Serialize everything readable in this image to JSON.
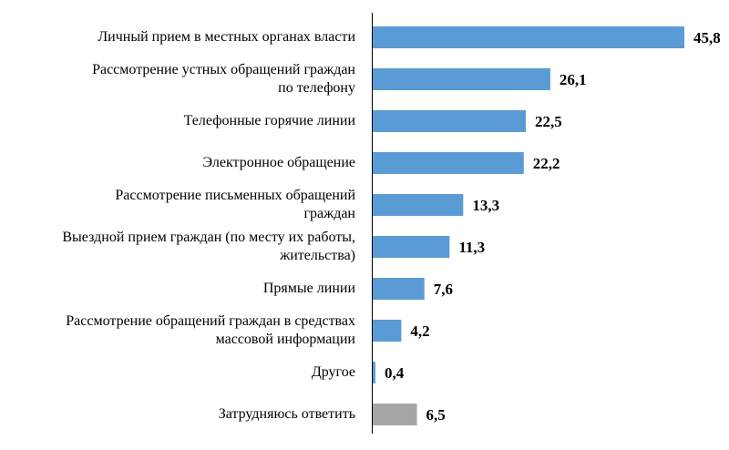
{
  "chart_data": {
    "type": "bar",
    "orientation": "horizontal",
    "categories": [
      "Личный прием в местных органах власти",
      "Рассмотрение устных  обращений граждан\nпо телефону",
      "Телефонные  горячие линии",
      "Электронное обращение",
      "Рассмотрение письменных  обращений\nграждан",
      "Выездной прием граждан (по месту их работы,\nжительства)",
      "Прямые линии",
      "Рассмотрение обращений граждан в средствах\nмассовой информации",
      "Другое",
      "Затрудняюсь ответить"
    ],
    "values": [
      45.8,
      26.1,
      22.5,
      22.2,
      13.3,
      11.3,
      7.6,
      4.2,
      0.4,
      6.5
    ],
    "value_labels": [
      "45,8",
      "26,1",
      "22,5",
      "22,2",
      "13,3",
      "11,3",
      "7,6",
      "4,2",
      "0,4",
      "6,5"
    ],
    "colors": [
      "#5b9bd5",
      "#5b9bd5",
      "#5b9bd5",
      "#5b9bd5",
      "#5b9bd5",
      "#5b9bd5",
      "#5b9bd5",
      "#5b9bd5",
      "#5b9bd5",
      "#a6a6a6"
    ]
  }
}
